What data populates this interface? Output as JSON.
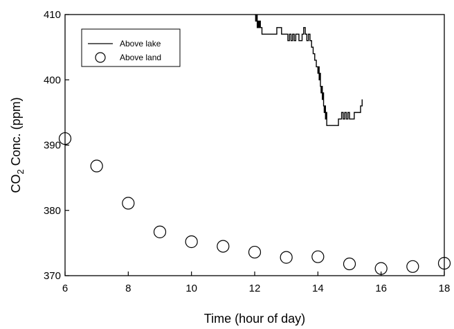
{
  "chart_data": {
    "type": "scatter",
    "title": "",
    "xlabel": "Time (hour of day)",
    "ylabel": {
      "prefix": "CO",
      "subscript": "2",
      "suffix": " Conc. (ppm)"
    },
    "xlim": [
      6,
      18
    ],
    "ylim": [
      370,
      410
    ],
    "xticks": [
      6,
      8,
      10,
      12,
      14,
      16,
      18
    ],
    "yticks": [
      370,
      380,
      390,
      400,
      410
    ],
    "grid": false,
    "legend": {
      "position": "top-left"
    },
    "series": [
      {
        "name": "Above lake",
        "kind": "line",
        "color": "#000000",
        "x": [
          12.0,
          12.03,
          12.05,
          12.08,
          12.1,
          12.13,
          12.15,
          12.18,
          12.2,
          12.23,
          12.3,
          12.4,
          12.55,
          12.7,
          12.85,
          13.0,
          13.05,
          13.1,
          13.15,
          13.2,
          13.25,
          13.3,
          13.4,
          13.5,
          13.55,
          13.6,
          13.65,
          13.7,
          13.75,
          13.8,
          13.85,
          13.9,
          13.95,
          14.0,
          14.02,
          14.04,
          14.06,
          14.08,
          14.1,
          14.12,
          14.14,
          14.16,
          14.18,
          14.2,
          14.22,
          14.24,
          14.26,
          14.28,
          14.3,
          14.35,
          14.4,
          14.5,
          14.6,
          14.65,
          14.7,
          14.75,
          14.8,
          14.85,
          14.9,
          14.95,
          15.0,
          15.05,
          15.1,
          15.15,
          15.2,
          15.25,
          15.3,
          15.35,
          15.4
        ],
        "y": [
          410,
          409,
          410,
          408,
          409,
          408,
          409,
          408,
          408,
          407,
          407,
          407,
          407,
          408,
          407,
          407,
          406,
          407,
          406,
          407,
          406,
          407,
          406,
          407,
          408,
          407,
          406,
          407,
          406,
          405,
          404,
          403,
          402,
          401,
          402,
          400,
          401,
          399,
          398,
          399,
          397,
          398,
          396,
          395,
          396,
          394,
          395,
          393,
          393,
          393,
          393,
          393,
          393,
          394,
          394,
          395,
          394,
          395,
          394,
          395,
          394,
          394,
          394,
          395,
          395,
          395,
          395,
          396,
          397
        ]
      },
      {
        "name": "Above land",
        "kind": "scatter",
        "marker": "open-circle",
        "x": [
          6,
          7,
          8,
          9,
          10,
          11,
          12,
          13,
          14,
          15,
          16,
          17,
          18
        ],
        "y": [
          391.0,
          386.8,
          381.1,
          376.7,
          375.2,
          374.5,
          373.6,
          372.8,
          372.9,
          371.8,
          371.1,
          371.4,
          371.9
        ]
      }
    ]
  }
}
